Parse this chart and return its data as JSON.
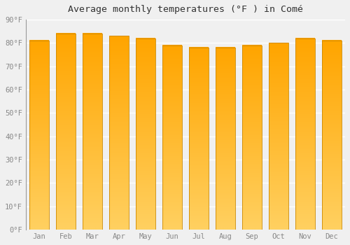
{
  "title": "Average monthly temperatures (°F ) in Comé",
  "months": [
    "Jan",
    "Feb",
    "Mar",
    "Apr",
    "May",
    "Jun",
    "Jul",
    "Aug",
    "Sep",
    "Oct",
    "Nov",
    "Dec"
  ],
  "values": [
    81,
    84,
    84,
    83,
    82,
    79,
    78,
    78,
    79,
    80,
    82,
    81
  ],
  "bar_color_top": "#FFA500",
  "bar_color_bottom": "#FFD060",
  "bar_edge_color": "#CC8800",
  "ylim": [
    0,
    90
  ],
  "yticks": [
    0,
    10,
    20,
    30,
    40,
    50,
    60,
    70,
    80,
    90
  ],
  "background_color": "#f0f0f0",
  "grid_color": "#ffffff",
  "title_fontsize": 9.5,
  "tick_fontsize": 7.5,
  "tick_color": "#888888",
  "title_color": "#333333",
  "bar_width": 0.72,
  "n_gradient_steps": 50
}
